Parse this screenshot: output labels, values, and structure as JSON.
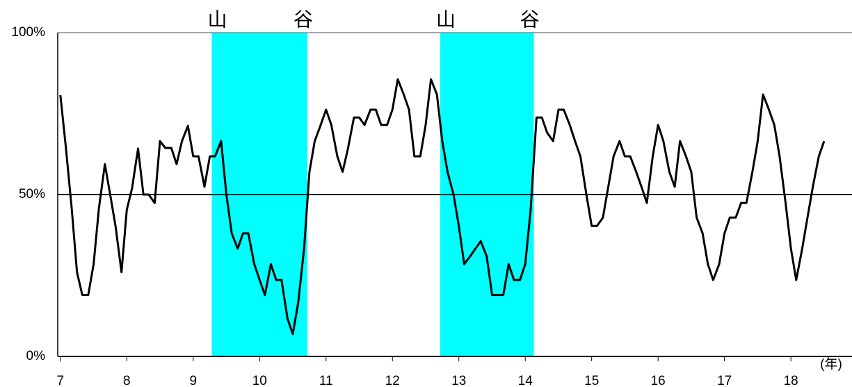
{
  "chart_data": {
    "type": "line",
    "x": [
      7,
      7.08,
      7.17,
      7.25,
      7.33,
      7.42,
      7.5,
      7.58,
      7.67,
      7.75,
      7.83,
      7.92,
      8,
      8.08,
      8.17,
      8.25,
      8.33,
      8.42,
      8.5,
      8.58,
      8.67,
      8.75,
      8.83,
      8.92,
      9,
      9.08,
      9.17,
      9.25,
      9.33,
      9.42,
      9.5,
      9.58,
      9.67,
      9.75,
      9.83,
      9.92,
      10,
      10.08,
      10.17,
      10.25,
      10.33,
      10.42,
      10.5,
      10.58,
      10.67,
      10.75,
      10.83,
      10.92,
      11,
      11.08,
      11.17,
      11.25,
      11.33,
      11.42,
      11.5,
      11.58,
      11.67,
      11.75,
      11.83,
      11.92,
      12,
      12.08,
      12.17,
      12.25,
      12.33,
      12.42,
      12.5,
      12.58,
      12.67,
      12.75,
      12.83,
      12.92,
      13,
      13.08,
      13.17,
      13.25,
      13.33,
      13.42,
      13.5,
      13.58,
      13.67,
      13.75,
      13.83,
      13.92,
      14,
      14.08,
      14.17,
      14.25,
      14.33,
      14.42,
      14.5,
      14.58,
      14.67,
      14.75,
      14.83,
      14.92,
      15,
      15.08,
      15.17,
      15.25,
      15.33,
      15.42,
      15.5,
      15.58,
      15.67,
      15.75,
      15.83,
      15.92,
      16,
      16.08,
      16.17,
      16.25,
      16.33,
      16.42,
      16.5,
      16.58,
      16.67,
      16.75,
      16.83,
      16.92,
      17,
      17.08,
      17.17,
      17.25,
      17.33,
      17.42,
      17.5,
      17.58,
      17.67,
      17.75,
      17.83,
      17.92,
      18,
      18.08,
      18.17,
      18.25,
      18.33,
      18.42,
      18.5
    ],
    "series": [
      {
        "color": "#000000",
        "values": [
          80.7,
          65,
          45.7,
          26,
          19,
          19,
          28.5,
          45.7,
          59.4,
          50,
          40.3,
          26,
          45.3,
          52,
          64.2,
          50,
          50,
          47.4,
          66.5,
          64.4,
          64.4,
          59.4,
          66.5,
          71.2,
          61.8,
          61.8,
          52.4,
          61.8,
          61.8,
          66.5,
          50,
          38,
          33.3,
          38,
          38,
          28.5,
          23.6,
          19,
          28.5,
          23.6,
          23.6,
          11.6,
          6.9,
          16.5,
          33.3,
          57,
          66.5,
          71.5,
          76.2,
          71.5,
          61.8,
          57,
          64.2,
          73.8,
          73.8,
          71.5,
          76.2,
          76.2,
          71.5,
          71.5,
          76.2,
          85.6,
          80.9,
          76.2,
          61.8,
          61.8,
          71.5,
          85.6,
          80.9,
          66.5,
          57,
          50,
          40.3,
          28.5,
          30.9,
          33.3,
          35.6,
          30.9,
          19,
          19,
          19,
          28.5,
          23.6,
          23.6,
          28.5,
          45.1,
          73.8,
          73.8,
          69.1,
          66.5,
          76.2,
          76.2,
          71.5,
          66.5,
          61.8,
          50,
          40.3,
          40.3,
          42.9,
          52.4,
          61.8,
          66.5,
          61.8,
          61.8,
          57,
          52.4,
          47.4,
          61.8,
          71.5,
          66.5,
          57,
          52.4,
          66.5,
          61.8,
          57,
          42.9,
          38,
          28.5,
          23.6,
          28.5,
          38,
          42.9,
          42.9,
          47.4,
          47.4,
          57,
          66.5,
          80.9,
          76.2,
          71.5,
          61.8,
          47.4,
          33.3,
          23.6,
          33.3,
          42.9,
          52.4,
          61.8,
          66.5
        ]
      }
    ],
    "xlim": [
      6.96,
      18.92
    ],
    "xticks": [
      7,
      8,
      9,
      10,
      11,
      12,
      13,
      14,
      15,
      16,
      17,
      18
    ],
    "ylim": [
      0,
      100
    ],
    "yticks": [
      {
        "value": 0,
        "label": "0%"
      },
      {
        "value": 50,
        "label": "50%"
      },
      {
        "value": 100,
        "label": "100%"
      }
    ],
    "x_unit": "(年)",
    "shaded_regions": [
      {
        "start": 9.28,
        "end": 10.72,
        "start_label": "山",
        "end_label": "谷",
        "color": "#00ffff"
      },
      {
        "start": 12.72,
        "end": 14.13,
        "start_label": "山",
        "end_label": "谷",
        "color": "#00ffff"
      }
    ]
  }
}
